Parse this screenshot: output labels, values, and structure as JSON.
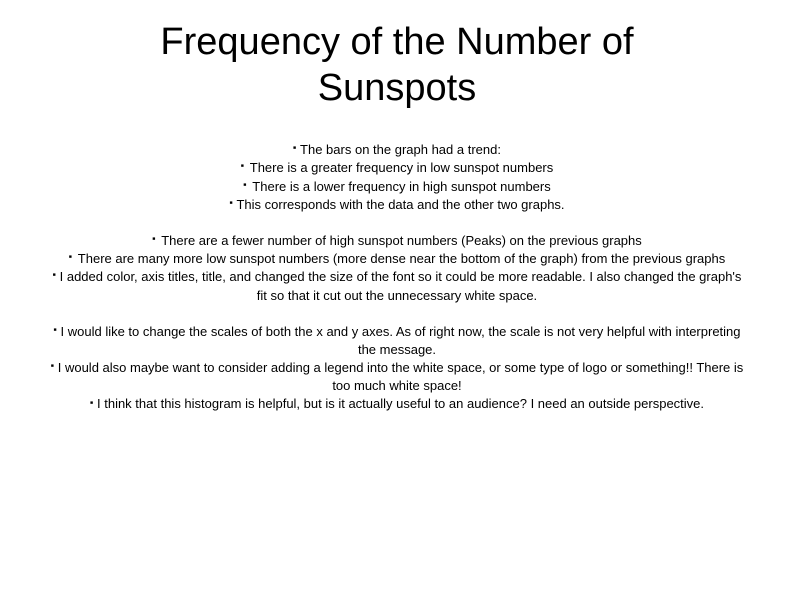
{
  "title": "Frequency of the Number of Sunspots",
  "block1": {
    "line1": "The bars on the graph had a trend:",
    "line2": "There is a greater frequency in low sunspot numbers",
    "line3": "There is a lower frequency in high sunspot numbers",
    "line4": "This corresponds with the data and the other two graphs."
  },
  "block2": {
    "line1": "There are a fewer number of high sunspot numbers (Peaks) on the previous graphs",
    "line2": "There are many more low sunspot numbers (more dense near the bottom of the graph) from the previous graphs",
    "line3": "I added color, axis titles, title, and changed the size of the font so it could be more readable. I also changed the graph's fit so that it cut out the unnecessary white space."
  },
  "block3": {
    "line1": "I would like to change the scales of both the x and y axes. As of right now, the scale is not very helpful with interpreting the message.",
    "line2": "I would also maybe want to consider adding a legend into the white space, or some type of logo or something!! There is too much white space!",
    "line3": "I think that this histogram is helpful, but is it actually useful to an audience? I need an outside perspective."
  },
  "styles": {
    "title_fontsize": 38,
    "body_fontsize": 13,
    "background_color": "#ffffff",
    "text_color": "#000000"
  }
}
